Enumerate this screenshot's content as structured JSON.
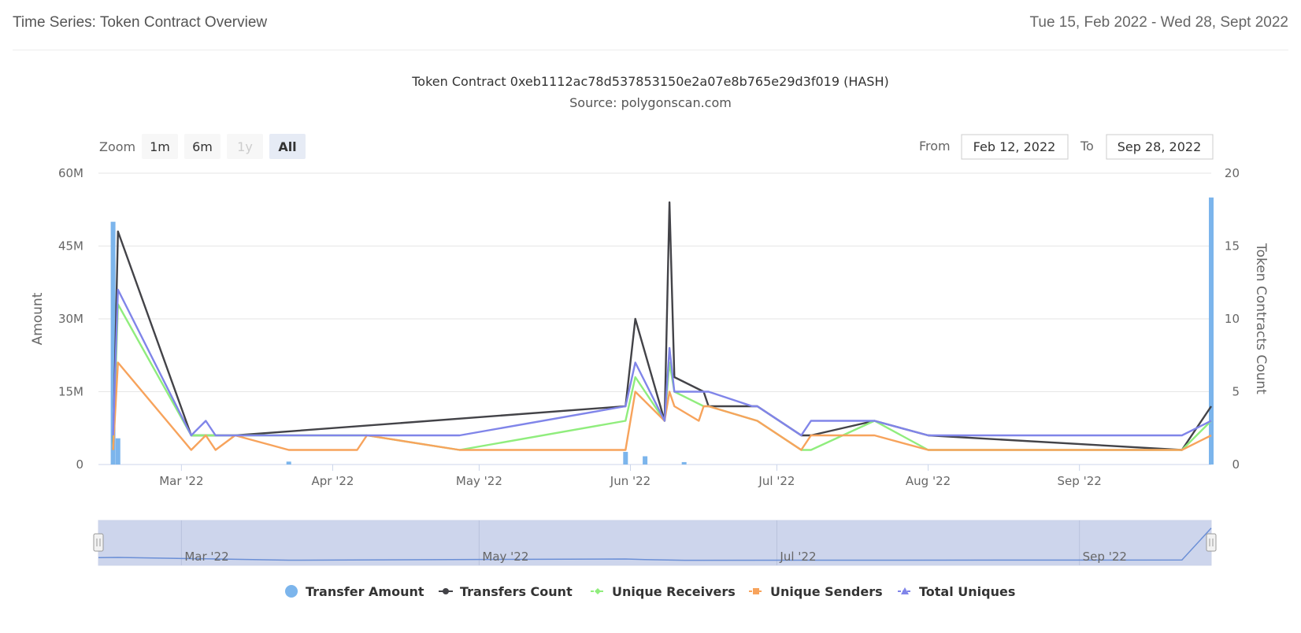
{
  "header": {
    "title": "Time Series: Token Contract Overview",
    "date_range": "Tue 15, Feb 2022 - Wed 28, Sept 2022"
  },
  "range_selector": {
    "zoom_label": "Zoom",
    "buttons": [
      {
        "label": "1m",
        "state": "normal"
      },
      {
        "label": "6m",
        "state": "normal"
      },
      {
        "label": "1y",
        "state": "disabled"
      },
      {
        "label": "All",
        "state": "selected"
      }
    ],
    "from_label": "From",
    "from_value": "Feb 12, 2022",
    "to_label": "To",
    "to_value": "Sep 28, 2022"
  },
  "navigator": {
    "labels": [
      "Mar '22",
      "May '22",
      "Jul '22",
      "Sep '22"
    ]
  },
  "chart_data": {
    "type": "line",
    "title": "Token Contract 0xeb1112ac78d537853150e2a07e8b765e29d3f019 (HASH)",
    "subtitle": "Source: polygonscan.com",
    "ylabel": "Amount",
    "y2label": "Token Contracts Count",
    "xlim": [
      "2022-02-12",
      "2022-09-28"
    ],
    "ylim": [
      0,
      60000000
    ],
    "y2lim": [
      0,
      20
    ],
    "yticks": [
      "0",
      "15M",
      "30M",
      "45M",
      "60M"
    ],
    "y2ticks": [
      "0",
      "5",
      "10",
      "15",
      "20"
    ],
    "xticks": [
      {
        "date": "2022-03-01",
        "label": "Mar '22"
      },
      {
        "date": "2022-04-01",
        "label": "Apr '22"
      },
      {
        "date": "2022-05-01",
        "label": "May '22"
      },
      {
        "date": "2022-06-01",
        "label": "Jun '22"
      },
      {
        "date": "2022-07-01",
        "label": "Jul '22"
      },
      {
        "date": "2022-08-01",
        "label": "Aug '22"
      },
      {
        "date": "2022-09-01",
        "label": "Sep '22"
      }
    ],
    "grid": true,
    "legend_position": "bottom-center",
    "series": [
      {
        "name": "Transfer Amount",
        "kind": "column",
        "axis": "left",
        "color": "#7cb5ec",
        "marker": "circle",
        "points": [
          [
            "2022-02-15",
            50000000
          ],
          [
            "2022-02-16",
            5400000
          ],
          [
            "2022-03-23",
            600000
          ],
          [
            "2022-05-31",
            2600000
          ],
          [
            "2022-06-04",
            1700000
          ],
          [
            "2022-06-12",
            500000
          ],
          [
            "2022-09-28",
            55000000
          ]
        ]
      },
      {
        "name": "Transfers Count",
        "kind": "line",
        "axis": "right",
        "color": "#434348",
        "marker": "circle",
        "points": [
          [
            "2022-02-15",
            1
          ],
          [
            "2022-02-16",
            16
          ],
          [
            "2022-03-03",
            2
          ],
          [
            "2022-03-06",
            2
          ],
          [
            "2022-03-08",
            2
          ],
          [
            "2022-03-12",
            2
          ],
          [
            "2022-05-31",
            4
          ],
          [
            "2022-06-02",
            10
          ],
          [
            "2022-06-08",
            3
          ],
          [
            "2022-06-09",
            18
          ],
          [
            "2022-06-10",
            6
          ],
          [
            "2022-06-16",
            5
          ],
          [
            "2022-06-17",
            4
          ],
          [
            "2022-06-27",
            4
          ],
          [
            "2022-07-06",
            2
          ],
          [
            "2022-07-08",
            2
          ],
          [
            "2022-07-21",
            3
          ],
          [
            "2022-08-01",
            2
          ],
          [
            "2022-09-22",
            1
          ],
          [
            "2022-09-28",
            4
          ]
        ]
      },
      {
        "name": "Unique Receivers",
        "kind": "line",
        "axis": "right",
        "color": "#90ed7d",
        "marker": "diamond",
        "points": [
          [
            "2022-02-15",
            1
          ],
          [
            "2022-02-16",
            11
          ],
          [
            "2022-03-03",
            2
          ],
          [
            "2022-03-06",
            2
          ],
          [
            "2022-03-08",
            2
          ],
          [
            "2022-03-12",
            2
          ],
          [
            "2022-04-08",
            2
          ],
          [
            "2022-04-27",
            1
          ],
          [
            "2022-05-31",
            3
          ],
          [
            "2022-06-02",
            6
          ],
          [
            "2022-06-08",
            3
          ],
          [
            "2022-06-09",
            7
          ],
          [
            "2022-06-10",
            5
          ],
          [
            "2022-06-16",
            4
          ],
          [
            "2022-06-17",
            4
          ],
          [
            "2022-06-27",
            3
          ],
          [
            "2022-07-06",
            1
          ],
          [
            "2022-07-08",
            1
          ],
          [
            "2022-07-21",
            3
          ],
          [
            "2022-08-01",
            1
          ],
          [
            "2022-09-22",
            1
          ],
          [
            "2022-09-28",
            3
          ]
        ]
      },
      {
        "name": "Unique Senders",
        "kind": "line",
        "axis": "right",
        "color": "#f7a35c",
        "marker": "square",
        "points": [
          [
            "2022-02-15",
            1
          ],
          [
            "2022-02-16",
            7
          ],
          [
            "2022-03-03",
            1
          ],
          [
            "2022-03-06",
            2
          ],
          [
            "2022-03-08",
            1
          ],
          [
            "2022-03-12",
            2
          ],
          [
            "2022-03-23",
            1
          ],
          [
            "2022-04-06",
            1
          ],
          [
            "2022-04-08",
            2
          ],
          [
            "2022-04-27",
            1
          ],
          [
            "2022-05-31",
            1
          ],
          [
            "2022-06-02",
            5
          ],
          [
            "2022-06-08",
            3
          ],
          [
            "2022-06-09",
            5
          ],
          [
            "2022-06-10",
            4
          ],
          [
            "2022-06-15",
            3
          ],
          [
            "2022-06-16",
            4
          ],
          [
            "2022-06-17",
            4
          ],
          [
            "2022-06-27",
            3
          ],
          [
            "2022-07-06",
            1
          ],
          [
            "2022-07-08",
            2
          ],
          [
            "2022-07-21",
            2
          ],
          [
            "2022-08-01",
            1
          ],
          [
            "2022-09-22",
            1
          ],
          [
            "2022-09-28",
            2
          ]
        ]
      },
      {
        "name": "Total Uniques",
        "kind": "line",
        "axis": "right",
        "color": "#8085e9",
        "marker": "triangle",
        "points": [
          [
            "2022-02-15",
            2
          ],
          [
            "2022-02-16",
            12
          ],
          [
            "2022-03-03",
            2
          ],
          [
            "2022-03-06",
            3
          ],
          [
            "2022-03-08",
            2
          ],
          [
            "2022-03-12",
            2
          ],
          [
            "2022-04-27",
            2
          ],
          [
            "2022-05-31",
            4
          ],
          [
            "2022-06-02",
            7
          ],
          [
            "2022-06-08",
            3
          ],
          [
            "2022-06-09",
            8
          ],
          [
            "2022-06-10",
            5
          ],
          [
            "2022-06-16",
            5
          ],
          [
            "2022-06-17",
            5
          ],
          [
            "2022-06-26",
            4
          ],
          [
            "2022-06-27",
            4
          ],
          [
            "2022-07-06",
            2
          ],
          [
            "2022-07-08",
            3
          ],
          [
            "2022-07-21",
            3
          ],
          [
            "2022-08-01",
            2
          ],
          [
            "2022-09-22",
            2
          ],
          [
            "2022-09-28",
            3
          ]
        ]
      }
    ]
  }
}
